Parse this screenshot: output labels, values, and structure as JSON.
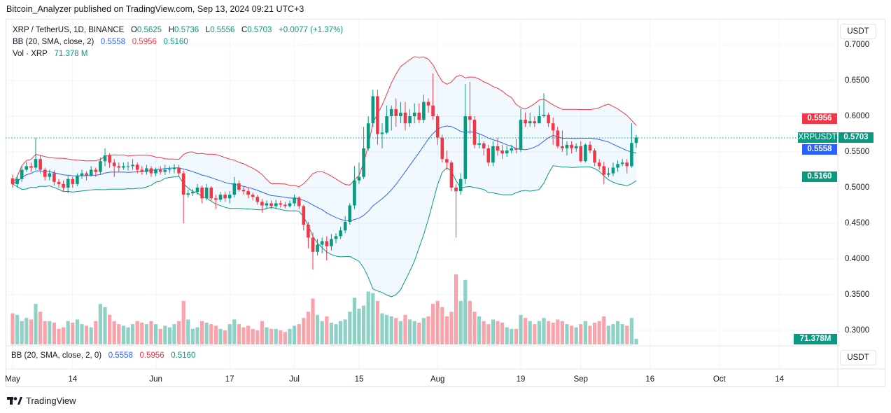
{
  "publisher": "Bitcoin_Analyzer published on TradingView.com, Sep 13, 2024 09:21 UTC+3",
  "legend": {
    "symbol": "XRP / TetherUS, 1D, BINANCE",
    "o_label": "O",
    "o": "0.5625",
    "h_label": "H",
    "h": "0.5736",
    "l_label": "L",
    "l": "0.5556",
    "c_label": "C",
    "c": "0.5703",
    "change": "+0.0077 (+1.37%)",
    "bb_label": "BB (20, SMA, close, 2)",
    "bb_basis": "0.5558",
    "bb_upper": "0.5956",
    "bb_lower": "0.5160",
    "vol_label": "Vol · XRP",
    "vol_value": "71.378 M"
  },
  "indicator_pane": {
    "label": "BB (20, SMA, close, 2, 0)",
    "basis": "0.5558",
    "upper": "0.5956",
    "lower": "0.5160"
  },
  "price_axis": {
    "currency_button": "USDT",
    "currency_button_2": "USDT",
    "ticks": [
      "0.7000",
      "0.6500",
      "0.6000",
      "0.5500",
      "0.5000",
      "0.4500",
      "0.4000",
      "0.3500",
      "0.3000"
    ],
    "badges": {
      "symbol": "XRPUSDT",
      "last": "0.5703",
      "bb_upper": "0.5956",
      "bb_basis": "0.5558",
      "bb_lower": "0.5160",
      "volume": "71.378M"
    }
  },
  "colors": {
    "up": "#089981",
    "down": "#f23645",
    "bb_basis": "#2962ff",
    "bb_upper": "#f23645",
    "bb_lower": "#089981"
  },
  "chart_data": {
    "type": "candlestick",
    "title": "XRP / TetherUS, 1D, BINANCE",
    "start_date": "2024-05-01",
    "ylim": [
      0.28,
      0.72
    ],
    "grid": true,
    "x_ticks": [
      {
        "label": "May",
        "date": "2024-05-01"
      },
      {
        "label": "14",
        "date": "2024-05-14"
      },
      {
        "label": "Jun",
        "date": "2024-06-01"
      },
      {
        "label": "17",
        "date": "2024-06-17"
      },
      {
        "label": "Jul",
        "date": "2024-07-01"
      },
      {
        "label": "15",
        "date": "2024-07-15"
      },
      {
        "label": "Aug",
        "date": "2024-08-01"
      },
      {
        "label": "19",
        "date": "2024-08-19"
      },
      {
        "label": "Sep",
        "date": "2024-09-01"
      },
      {
        "label": "16",
        "date": "2024-09-16"
      },
      {
        "label": "Oct",
        "date": "2024-10-01"
      },
      {
        "label": "14",
        "date": "2024-10-14"
      }
    ],
    "ohlc": [
      [
        0.513,
        0.518,
        0.5,
        0.505
      ],
      [
        0.505,
        0.517,
        0.5,
        0.512
      ],
      [
        0.512,
        0.53,
        0.508,
        0.525
      ],
      [
        0.525,
        0.536,
        0.522,
        0.53
      ],
      [
        0.53,
        0.535,
        0.522,
        0.528
      ],
      [
        0.528,
        0.57,
        0.525,
        0.54
      ],
      [
        0.54,
        0.545,
        0.52,
        0.525
      ],
      [
        0.525,
        0.528,
        0.51,
        0.515
      ],
      [
        0.515,
        0.525,
        0.51,
        0.52
      ],
      [
        0.52,
        0.524,
        0.503,
        0.508
      ],
      [
        0.508,
        0.512,
        0.5,
        0.505
      ],
      [
        0.505,
        0.51,
        0.495,
        0.5
      ],
      [
        0.5,
        0.516,
        0.492,
        0.512
      ],
      [
        0.512,
        0.515,
        0.5,
        0.505
      ],
      [
        0.505,
        0.52,
        0.502,
        0.517
      ],
      [
        0.517,
        0.525,
        0.512,
        0.52
      ],
      [
        0.52,
        0.523,
        0.51,
        0.517
      ],
      [
        0.517,
        0.53,
        0.515,
        0.525
      ],
      [
        0.525,
        0.528,
        0.515,
        0.522
      ],
      [
        0.522,
        0.542,
        0.518,
        0.537
      ],
      [
        0.537,
        0.555,
        0.53,
        0.545
      ],
      [
        0.545,
        0.548,
        0.528,
        0.535
      ],
      [
        0.535,
        0.54,
        0.515,
        0.53
      ],
      [
        0.53,
        0.535,
        0.522,
        0.528
      ],
      [
        0.528,
        0.535,
        0.525,
        0.53
      ],
      [
        0.53,
        0.536,
        0.524,
        0.53
      ],
      [
        0.53,
        0.54,
        0.525,
        0.532
      ],
      [
        0.532,
        0.535,
        0.52,
        0.525
      ],
      [
        0.525,
        0.53,
        0.518,
        0.522
      ],
      [
        0.522,
        0.532,
        0.518,
        0.527
      ],
      [
        0.527,
        0.53,
        0.515,
        0.52
      ],
      [
        0.52,
        0.528,
        0.516,
        0.525
      ],
      [
        0.525,
        0.53,
        0.518,
        0.522
      ],
      [
        0.522,
        0.532,
        0.518,
        0.525
      ],
      [
        0.525,
        0.53,
        0.52,
        0.526
      ],
      [
        0.526,
        0.533,
        0.52,
        0.528
      ],
      [
        0.528,
        0.532,
        0.515,
        0.52
      ],
      [
        0.52,
        0.524,
        0.45,
        0.49
      ],
      [
        0.49,
        0.497,
        0.486,
        0.492
      ],
      [
        0.492,
        0.498,
        0.488,
        0.494
      ],
      [
        0.494,
        0.505,
        0.49,
        0.5
      ],
      [
        0.5,
        0.503,
        0.478,
        0.485
      ],
      [
        0.485,
        0.505,
        0.482,
        0.5
      ],
      [
        0.5,
        0.502,
        0.48,
        0.485
      ],
      [
        0.485,
        0.49,
        0.47,
        0.483
      ],
      [
        0.483,
        0.494,
        0.48,
        0.49
      ],
      [
        0.49,
        0.494,
        0.48,
        0.485
      ],
      [
        0.485,
        0.495,
        0.478,
        0.49
      ],
      [
        0.49,
        0.515,
        0.486,
        0.506
      ],
      [
        0.506,
        0.51,
        0.494,
        0.497
      ],
      [
        0.497,
        0.502,
        0.49,
        0.495
      ],
      [
        0.495,
        0.5,
        0.485,
        0.49
      ],
      [
        0.49,
        0.493,
        0.482,
        0.487
      ],
      [
        0.487,
        0.49,
        0.476,
        0.48
      ],
      [
        0.48,
        0.484,
        0.465,
        0.475
      ],
      [
        0.475,
        0.482,
        0.47,
        0.478
      ],
      [
        0.478,
        0.482,
        0.47,
        0.474
      ],
      [
        0.474,
        0.483,
        0.47,
        0.478
      ],
      [
        0.478,
        0.482,
        0.472,
        0.476
      ],
      [
        0.476,
        0.48,
        0.471,
        0.474
      ],
      [
        0.474,
        0.482,
        0.472,
        0.478
      ],
      [
        0.478,
        0.49,
        0.474,
        0.486
      ],
      [
        0.486,
        0.488,
        0.47,
        0.474
      ],
      [
        0.474,
        0.476,
        0.44,
        0.448
      ],
      [
        0.448,
        0.452,
        0.415,
        0.43
      ],
      [
        0.43,
        0.437,
        0.385,
        0.41
      ],
      [
        0.41,
        0.428,
        0.405,
        0.42
      ],
      [
        0.42,
        0.43,
        0.408,
        0.425
      ],
      [
        0.425,
        0.432,
        0.398,
        0.418
      ],
      [
        0.418,
        0.435,
        0.412,
        0.428
      ],
      [
        0.428,
        0.436,
        0.422,
        0.432
      ],
      [
        0.432,
        0.445,
        0.428,
        0.44
      ],
      [
        0.44,
        0.46,
        0.436,
        0.452
      ],
      [
        0.452,
        0.478,
        0.448,
        0.475
      ],
      [
        0.475,
        0.53,
        0.47,
        0.51
      ],
      [
        0.51,
        0.535,
        0.505,
        0.515
      ],
      [
        0.515,
        0.585,
        0.512,
        0.555
      ],
      [
        0.555,
        0.6,
        0.552,
        0.59
      ],
      [
        0.59,
        0.637,
        0.585,
        0.628
      ],
      [
        0.628,
        0.637,
        0.56,
        0.575
      ],
      [
        0.575,
        0.59,
        0.555,
        0.577
      ],
      [
        0.577,
        0.615,
        0.575,
        0.6
      ],
      [
        0.6,
        0.615,
        0.58,
        0.61
      ],
      [
        0.61,
        0.625,
        0.585,
        0.6
      ],
      [
        0.6,
        0.62,
        0.59,
        0.605
      ],
      [
        0.605,
        0.62,
        0.58,
        0.59
      ],
      [
        0.59,
        0.61,
        0.585,
        0.6
      ],
      [
        0.6,
        0.618,
        0.59,
        0.605
      ],
      [
        0.605,
        0.618,
        0.59,
        0.595
      ],
      [
        0.595,
        0.63,
        0.59,
        0.62
      ],
      [
        0.62,
        0.625,
        0.605,
        0.615
      ],
      [
        0.615,
        0.66,
        0.595,
        0.6
      ],
      [
        0.6,
        0.603,
        0.56,
        0.57
      ],
      [
        0.57,
        0.574,
        0.535,
        0.54
      ],
      [
        0.54,
        0.552,
        0.525,
        0.535
      ],
      [
        0.535,
        0.538,
        0.495,
        0.5
      ],
      [
        0.5,
        0.505,
        0.43,
        0.495
      ],
      [
        0.495,
        0.52,
        0.49,
        0.512
      ],
      [
        0.512,
        0.645,
        0.505,
        0.6
      ],
      [
        0.6,
        0.648,
        0.575,
        0.595
      ],
      [
        0.595,
        0.6,
        0.555,
        0.56
      ],
      [
        0.56,
        0.575,
        0.555,
        0.562
      ],
      [
        0.562,
        0.565,
        0.545,
        0.555
      ],
      [
        0.555,
        0.56,
        0.53,
        0.535
      ],
      [
        0.535,
        0.565,
        0.53,
        0.558
      ],
      [
        0.558,
        0.57,
        0.545,
        0.552
      ],
      [
        0.552,
        0.56,
        0.54,
        0.548
      ],
      [
        0.548,
        0.558,
        0.543,
        0.552
      ],
      [
        0.552,
        0.56,
        0.548,
        0.555
      ],
      [
        0.555,
        0.568,
        0.548,
        0.553
      ],
      [
        0.553,
        0.61,
        0.55,
        0.595
      ],
      [
        0.595,
        0.605,
        0.585,
        0.59
      ],
      [
        0.59,
        0.605,
        0.585,
        0.593
      ],
      [
        0.593,
        0.6,
        0.585,
        0.59
      ],
      [
        0.59,
        0.615,
        0.59,
        0.6
      ],
      [
        0.6,
        0.632,
        0.598,
        0.602
      ],
      [
        0.602,
        0.605,
        0.585,
        0.59
      ],
      [
        0.59,
        0.598,
        0.56,
        0.58
      ],
      [
        0.58,
        0.585,
        0.555,
        0.558
      ],
      [
        0.558,
        0.58,
        0.55,
        0.555
      ],
      [
        0.555,
        0.565,
        0.545,
        0.56
      ],
      [
        0.56,
        0.565,
        0.548,
        0.555
      ],
      [
        0.555,
        0.562,
        0.55,
        0.558
      ],
      [
        0.558,
        0.565,
        0.535,
        0.537
      ],
      [
        0.537,
        0.562,
        0.535,
        0.56
      ],
      [
        0.56,
        0.565,
        0.548,
        0.552
      ],
      [
        0.552,
        0.555,
        0.53,
        0.535
      ],
      [
        0.535,
        0.54,
        0.525,
        0.53
      ],
      [
        0.53,
        0.536,
        0.505,
        0.518
      ],
      [
        0.518,
        0.528,
        0.515,
        0.52
      ],
      [
        0.52,
        0.535,
        0.516,
        0.528
      ],
      [
        0.528,
        0.538,
        0.522,
        0.533
      ],
      [
        0.533,
        0.54,
        0.53,
        0.535
      ],
      [
        0.535,
        0.54,
        0.52,
        0.53
      ],
      [
        0.53,
        0.59,
        0.528,
        0.5625
      ],
      [
        0.5625,
        0.5736,
        0.5556,
        0.5703
      ]
    ],
    "volume_millions": [
      400,
      380,
      300,
      340,
      320,
      520,
      420,
      300,
      300,
      280,
      200,
      220,
      300,
      280,
      320,
      260,
      240,
      220,
      300,
      520,
      480,
      380,
      300,
      260,
      240,
      220,
      260,
      300,
      280,
      260,
      300,
      260,
      200,
      240,
      220,
      260,
      300,
      560,
      320,
      200,
      220,
      300,
      280,
      260,
      240,
      200,
      180,
      260,
      320,
      260,
      220,
      240,
      200,
      180,
      300,
      220,
      200,
      200,
      180,
      160,
      200,
      240,
      260,
      340,
      420,
      590,
      380,
      300,
      360,
      280,
      260,
      300,
      320,
      420,
      600,
      460,
      500,
      680,
      660,
      560,
      400,
      380,
      360,
      340,
      300,
      380,
      320,
      300,
      280,
      340,
      360,
      520,
      560,
      480,
      360,
      420,
      900,
      560,
      830,
      560,
      420,
      360,
      300,
      260,
      320,
      300,
      280,
      220,
      200,
      200,
      380,
      340,
      300,
      260,
      300,
      340,
      300,
      280,
      320,
      300,
      260,
      240,
      220,
      260,
      300,
      240,
      280,
      300,
      360,
      240,
      260,
      300,
      260,
      240,
      340,
      71.378
    ],
    "bollinger": {
      "length": 20,
      "ma": "SMA",
      "source": "close",
      "mult": 2
    }
  },
  "footer": {
    "brand": "TradingView"
  }
}
